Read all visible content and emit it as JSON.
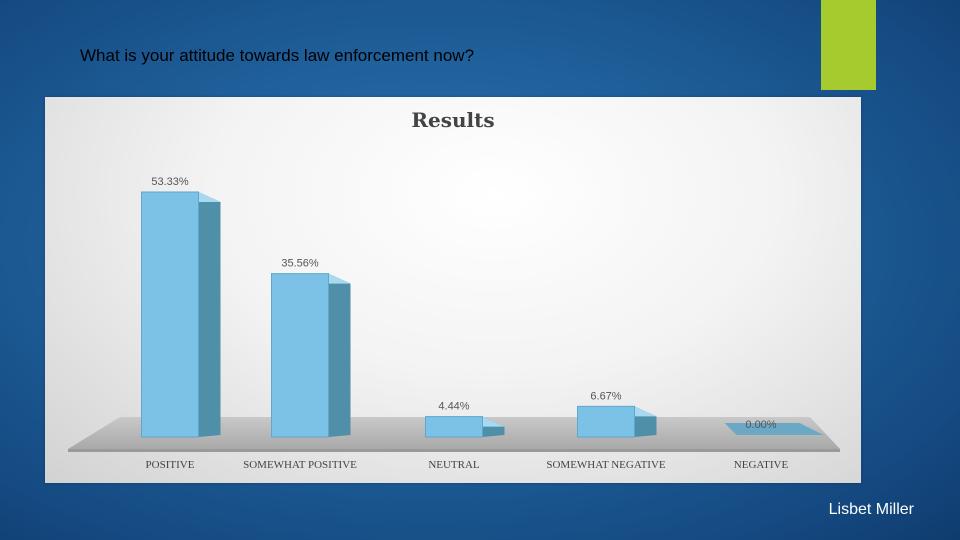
{
  "slide": {
    "title": "What is your attitude towards law enforcement now?",
    "author": "Lisbet Miller",
    "accent_color": "#a6cb2e"
  },
  "chart_data": {
    "type": "bar",
    "title": "Results",
    "categories": [
      "POSITIVE",
      "SOMEWHAT POSITIVE",
      "NEUTRAL",
      "SOMEWHAT NEGATIVE",
      "NEGATIVE"
    ],
    "values": [
      53.33,
      35.56,
      4.44,
      6.67,
      0.0
    ],
    "data_labels": [
      "53.33%",
      "35.56%",
      "4.44%",
      "6.67%",
      "0.00%"
    ],
    "unit": "%",
    "ylim": [
      0,
      60
    ],
    "grid": false,
    "legend": "none",
    "style": "3d",
    "bar_color": "#7cc1e6"
  }
}
